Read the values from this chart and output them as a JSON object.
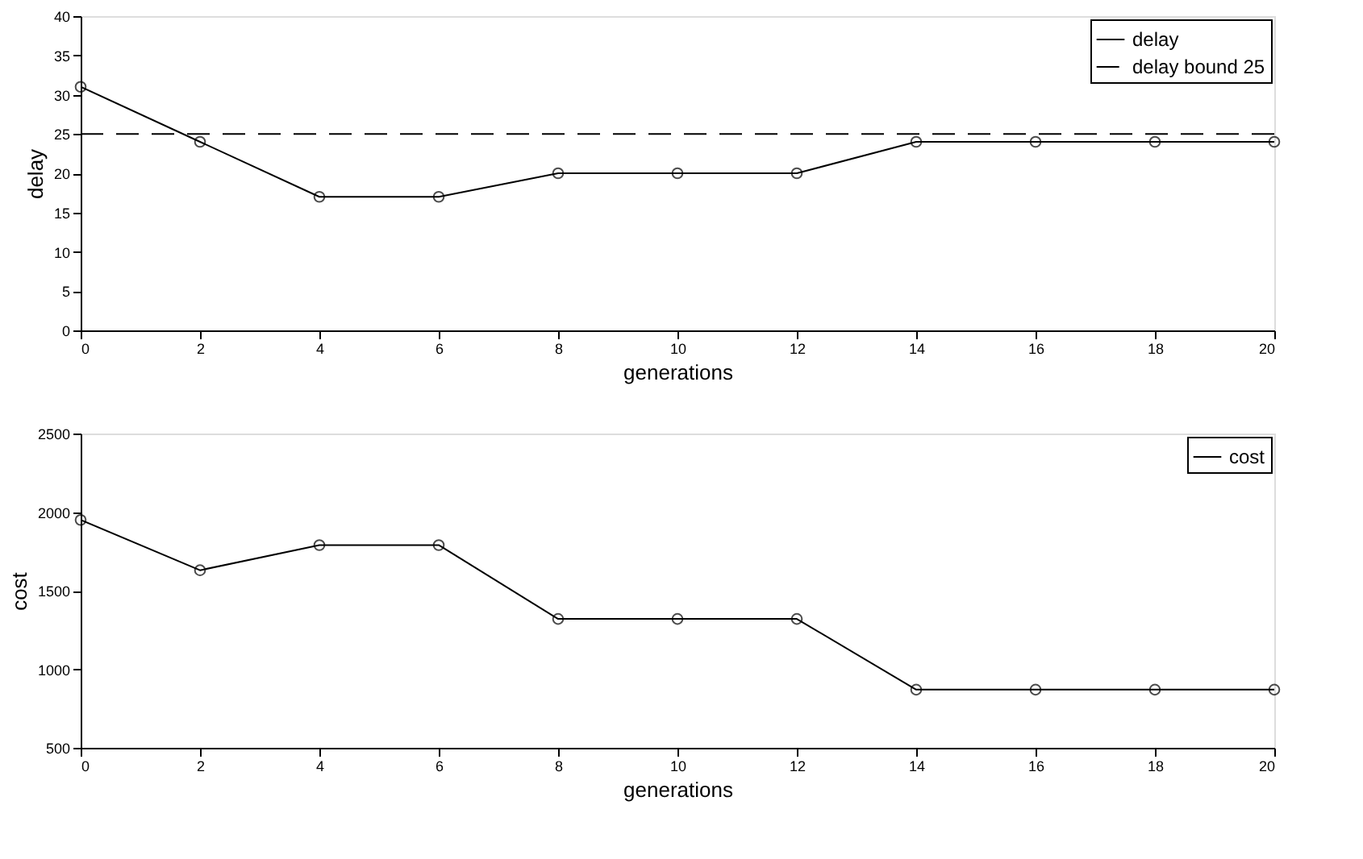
{
  "chart_data": [
    {
      "type": "line",
      "xlabel": "generations",
      "ylabel": "delay",
      "x": [
        0,
        2,
        4,
        6,
        8,
        10,
        12,
        14,
        16,
        18,
        20
      ],
      "xlim": [
        0,
        20
      ],
      "xticks": [
        0,
        2,
        4,
        6,
        8,
        10,
        12,
        14,
        16,
        18,
        20
      ],
      "ylim": [
        0,
        40
      ],
      "yticks": [
        0,
        5,
        10,
        15,
        20,
        25,
        30,
        35,
        40
      ],
      "grid": false,
      "legend": "top right",
      "series": [
        {
          "name": "delay",
          "color": "#000000",
          "marker": "circle",
          "line_style": "solid",
          "values": [
            31,
            24,
            17,
            17,
            20,
            20,
            20,
            24,
            24,
            24,
            24
          ]
        },
        {
          "name": "delay bound 25",
          "color": "#000000",
          "marker": "none",
          "line_style": "dashed",
          "x": [
            0,
            20
          ],
          "values": [
            25,
            25
          ]
        }
      ]
    },
    {
      "type": "line",
      "xlabel": "generations",
      "ylabel": "cost",
      "x": [
        0,
        2,
        4,
        6,
        8,
        10,
        12,
        14,
        16,
        18,
        20
      ],
      "xlim": [
        0,
        20
      ],
      "xticks": [
        0,
        2,
        4,
        6,
        8,
        10,
        12,
        14,
        16,
        18,
        20
      ],
      "ylim": [
        500,
        2500
      ],
      "yticks": [
        500,
        1000,
        1500,
        2000,
        2500
      ],
      "grid": false,
      "legend": "top right",
      "series": [
        {
          "name": "cost",
          "color": "#000000",
          "marker": "circle",
          "line_style": "solid",
          "values": [
            1950,
            1630,
            1790,
            1790,
            1320,
            1320,
            1320,
            870,
            870,
            870,
            870
          ]
        }
      ]
    }
  ]
}
